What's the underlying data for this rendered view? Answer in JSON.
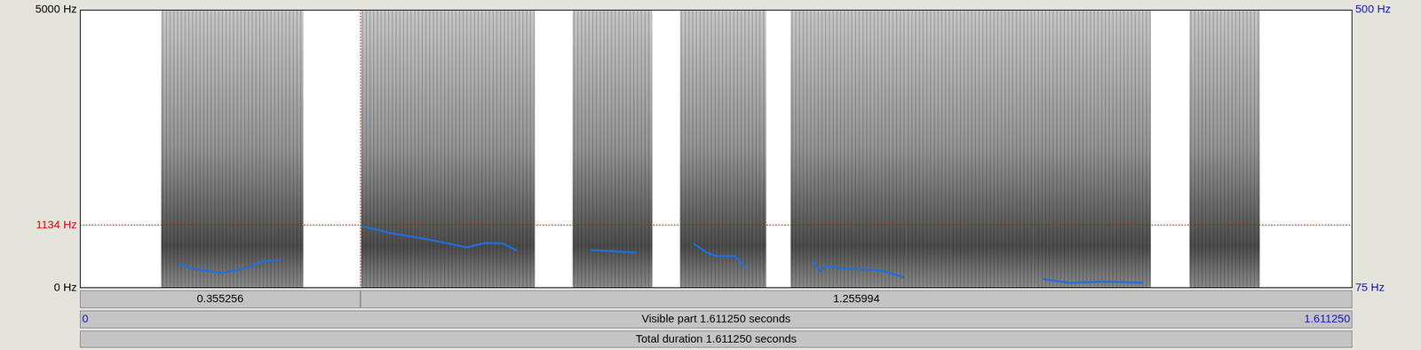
{
  "chart_data": {
    "type": "line",
    "xlim": [
      0,
      1.61125
    ],
    "xticks": [
      {
        "value": 0,
        "label": "0"
      },
      {
        "value": 1.61125,
        "label": "1.611250"
      }
    ],
    "ylim": [
      0,
      5000
    ],
    "yticks": [
      {
        "value": 0,
        "label": "0 Hz"
      },
      {
        "value": 5000,
        "label": "5000 Hz"
      }
    ],
    "y2lim": [
      75,
      500
    ],
    "y2ticks": [
      {
        "value": 75,
        "label": "75 Hz"
      },
      {
        "value": 500,
        "label": "500 Hz"
      }
    ],
    "cursor_frequency": {
      "value": 1134,
      "label": "1134 Hz"
    },
    "selection_durations": [
      0.355256,
      1.255994
    ],
    "visible_part": "Visible part 1.611250 seconds",
    "total_duration": "Total duration 1.611250 seconds",
    "sound_regions": [
      [
        0.103,
        0.283
      ],
      [
        0.356,
        0.576
      ],
      [
        0.624,
        0.725
      ],
      [
        0.76,
        0.869
      ],
      [
        0.9,
        1.047
      ],
      [
        1.047,
        1.207
      ],
      [
        1.207,
        1.356
      ],
      [
        1.405,
        1.494
      ]
    ],
    "series": [
      {
        "axis": "y2",
        "color": "#1f6fe0",
        "x": [
          0.125,
          0.14,
          0.18,
          0.209,
          0.232,
          0.255
        ],
        "values": [
          113,
          105,
          98,
          105,
          116,
          118
        ]
      },
      {
        "axis": "y2",
        "color": "#1f6fe0",
        "x": [
          0.356,
          0.393,
          0.438,
          0.49,
          0.513,
          0.536,
          0.553
        ],
        "values": [
          170,
          159,
          150,
          137,
          144,
          143,
          132
        ]
      },
      {
        "axis": "y2",
        "color": "#1f6fe0",
        "x": [
          0.646,
          0.705
        ],
        "values": [
          133,
          129
        ]
      },
      {
        "axis": "y2",
        "color": "#1f6fe0",
        "x": [
          0.777,
          0.794,
          0.806,
          0.829,
          0.843
        ],
        "values": [
          143,
          129,
          124,
          124,
          106
        ]
      },
      {
        "axis": "y2",
        "color": "#1f6fe0",
        "x": [
          0.928,
          0.938,
          0.946,
          0.966,
          1.012,
          1.029,
          1.044
        ],
        "values": [
          116,
          101,
          109,
          105,
          102,
          97,
          91
        ]
      },
      {
        "axis": "y2",
        "color": "#1f6fe0",
        "x": [
          1.219,
          1.253,
          1.299,
          1.347
        ],
        "values": [
          89,
          83,
          85,
          83
        ]
      }
    ],
    "grid": false
  }
}
